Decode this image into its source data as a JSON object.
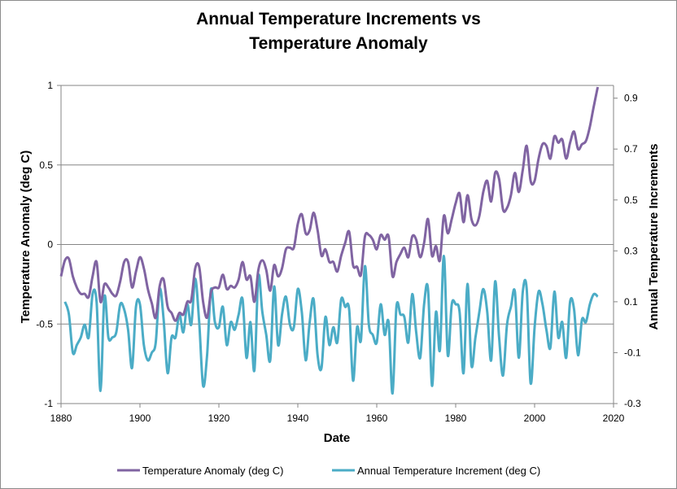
{
  "chart_data": {
    "type": "line",
    "title_line1": "Annual Temperature Increments vs",
    "title_line2": "Temperature Anomaly",
    "xlabel": "Date",
    "ylabel_left": "Temperature Anomaly (deg C)",
    "ylabel_right": "Annual Temperature Increments",
    "xlim": [
      1880,
      2020
    ],
    "xticks": [
      1880,
      1900,
      1920,
      1940,
      1960,
      1980,
      2000,
      2020
    ],
    "ylim_left": [
      -1,
      1
    ],
    "yticks_left": [
      -1,
      -0.5,
      0,
      0.5,
      1
    ],
    "ylim_right": [
      -0.3,
      0.95
    ],
    "yticks_right": [
      -0.3,
      -0.1,
      0.1,
      0.3,
      0.5,
      0.7,
      0.9
    ],
    "gridlines": "horizontal",
    "legend_position": "bottom",
    "colors": {
      "anomaly": "#8064a2",
      "increment": "#4bacc6",
      "grid": "#868686",
      "axis": "#868686"
    },
    "series": [
      {
        "name": "Temperature Anomaly (deg C)",
        "axis": "left",
        "color": "#8064a2",
        "x": [
          1880,
          1881,
          1882,
          1883,
          1884,
          1885,
          1886,
          1887,
          1888,
          1889,
          1890,
          1891,
          1892,
          1893,
          1894,
          1895,
          1896,
          1897,
          1898,
          1899,
          1900,
          1901,
          1902,
          1903,
          1904,
          1905,
          1906,
          1907,
          1908,
          1909,
          1910,
          1911,
          1912,
          1913,
          1914,
          1915,
          1916,
          1917,
          1918,
          1919,
          1920,
          1921,
          1922,
          1923,
          1924,
          1925,
          1926,
          1927,
          1928,
          1929,
          1930,
          1931,
          1932,
          1933,
          1934,
          1935,
          1936,
          1937,
          1938,
          1939,
          1940,
          1941,
          1942,
          1943,
          1944,
          1945,
          1946,
          1947,
          1948,
          1949,
          1950,
          1951,
          1952,
          1953,
          1954,
          1955,
          1956,
          1957,
          1958,
          1959,
          1960,
          1961,
          1962,
          1963,
          1964,
          1965,
          1966,
          1967,
          1968,
          1969,
          1970,
          1971,
          1972,
          1973,
          1974,
          1975,
          1976,
          1977,
          1978,
          1979,
          1980,
          1981,
          1982,
          1983,
          1984,
          1985,
          1986,
          1987,
          1988,
          1989,
          1990,
          1991,
          1992,
          1993,
          1994,
          1995,
          1996,
          1997,
          1998,
          1999,
          2000,
          2001,
          2002,
          2003,
          2004,
          2005,
          2006,
          2007,
          2008,
          2009,
          2010,
          2011,
          2012,
          2013,
          2014,
          2015,
          2016
        ],
        "values": [
          -0.2,
          -0.1,
          -0.09,
          -0.2,
          -0.27,
          -0.31,
          -0.31,
          -0.33,
          -0.2,
          -0.11,
          -0.36,
          -0.25,
          -0.27,
          -0.31,
          -0.32,
          -0.23,
          -0.11,
          -0.11,
          -0.27,
          -0.17,
          -0.08,
          -0.15,
          -0.28,
          -0.37,
          -0.46,
          -0.26,
          -0.22,
          -0.39,
          -0.43,
          -0.48,
          -0.43,
          -0.44,
          -0.36,
          -0.35,
          -0.15,
          -0.14,
          -0.36,
          -0.46,
          -0.3,
          -0.27,
          -0.27,
          -0.19,
          -0.28,
          -0.26,
          -0.27,
          -0.22,
          -0.11,
          -0.22,
          -0.2,
          -0.36,
          -0.16,
          -0.1,
          -0.16,
          -0.29,
          -0.13,
          -0.2,
          -0.15,
          -0.03,
          -0.02,
          -0.02,
          0.13,
          0.19,
          0.07,
          0.09,
          0.2,
          0.09,
          -0.07,
          -0.03,
          -0.11,
          -0.11,
          -0.17,
          -0.07,
          0.01,
          0.08,
          -0.13,
          -0.14,
          -0.19,
          0.05,
          0.06,
          0.03,
          -0.03,
          0.06,
          0.03,
          0.05,
          -0.2,
          -0.11,
          -0.06,
          -0.02,
          -0.08,
          0.05,
          0.03,
          -0.08,
          0.01,
          0.16,
          -0.07,
          -0.01,
          -0.1,
          0.18,
          0.07,
          0.16,
          0.26,
          0.32,
          0.14,
          0.31,
          0.16,
          0.12,
          0.18,
          0.33,
          0.4,
          0.27,
          0.45,
          0.41,
          0.22,
          0.23,
          0.31,
          0.45,
          0.33,
          0.47,
          0.62,
          0.4,
          0.4,
          0.54,
          0.63,
          0.62,
          0.54,
          0.68,
          0.64,
          0.66,
          0.54,
          0.64,
          0.71,
          0.6,
          0.63,
          0.65,
          0.74,
          0.87,
          0.99
        ]
      },
      {
        "name": "Annual Temperature Increment (deg C)",
        "axis": "right",
        "color": "#4bacc6",
        "x": [
          1881,
          1882,
          1883,
          1884,
          1885,
          1886,
          1887,
          1888,
          1889,
          1890,
          1891,
          1892,
          1893,
          1894,
          1895,
          1896,
          1897,
          1898,
          1899,
          1900,
          1901,
          1902,
          1903,
          1904,
          1905,
          1906,
          1907,
          1908,
          1909,
          1910,
          1911,
          1912,
          1913,
          1914,
          1915,
          1916,
          1917,
          1918,
          1919,
          1920,
          1921,
          1922,
          1923,
          1924,
          1925,
          1926,
          1927,
          1928,
          1929,
          1930,
          1931,
          1932,
          1933,
          1934,
          1935,
          1936,
          1937,
          1938,
          1939,
          1940,
          1941,
          1942,
          1943,
          1944,
          1945,
          1946,
          1947,
          1948,
          1949,
          1950,
          1951,
          1952,
          1953,
          1954,
          1955,
          1956,
          1957,
          1958,
          1959,
          1960,
          1961,
          1962,
          1963,
          1964,
          1965,
          1966,
          1967,
          1968,
          1969,
          1970,
          1971,
          1972,
          1973,
          1974,
          1975,
          1976,
          1977,
          1978,
          1979,
          1980,
          1981,
          1982,
          1983,
          1984,
          1985,
          1986,
          1987,
          1988,
          1989,
          1990,
          1991,
          1992,
          1993,
          1994,
          1995,
          1996,
          1997,
          1998,
          1999,
          2000,
          2001,
          2002,
          2003,
          2004,
          2005,
          2006,
          2007,
          2008,
          2009,
          2010,
          2011,
          2012,
          2013,
          2014,
          2015,
          2016
        ],
        "values": [
          0.1,
          0.05,
          -0.1,
          -0.07,
          -0.04,
          0.01,
          -0.04,
          0.13,
          0.1,
          -0.25,
          0.12,
          -0.04,
          -0.04,
          -0.02,
          0.09,
          0.07,
          -0.01,
          -0.16,
          0.08,
          0.09,
          -0.07,
          -0.13,
          -0.1,
          -0.06,
          0.15,
          0.03,
          -0.18,
          -0.04,
          -0.04,
          0.05,
          -0.02,
          0.09,
          0.01,
          0.19,
          0.02,
          -0.23,
          -0.11,
          0.15,
          0.02,
          0.0,
          0.08,
          -0.07,
          0.02,
          -0.01,
          0.05,
          0.11,
          -0.12,
          0.02,
          -0.17,
          0.2,
          0.06,
          -0.03,
          -0.13,
          0.16,
          -0.07,
          0.05,
          0.12,
          0.01,
          0.0,
          0.15,
          0.06,
          -0.13,
          0.02,
          0.11,
          -0.11,
          -0.16,
          0.04,
          -0.07,
          0.0,
          -0.06,
          0.11,
          0.08,
          0.07,
          -0.21,
          0.0,
          -0.05,
          0.24,
          0.01,
          -0.03,
          -0.06,
          0.09,
          -0.03,
          0.02,
          -0.26,
          0.08,
          0.05,
          0.04,
          -0.06,
          0.13,
          -0.02,
          -0.12,
          0.09,
          0.15,
          -0.23,
          0.06,
          -0.09,
          0.28,
          -0.11,
          0.09,
          0.09,
          0.06,
          -0.18,
          0.17,
          -0.15,
          -0.04,
          0.06,
          0.15,
          0.06,
          -0.13,
          0.18,
          -0.04,
          -0.19,
          0.01,
          0.08,
          0.14,
          -0.12,
          0.14,
          0.15,
          -0.22,
          0.0,
          0.14,
          0.09,
          -0.01,
          -0.08,
          0.14,
          -0.04,
          0.02,
          -0.12,
          0.1,
          0.07,
          -0.11,
          0.03,
          0.02,
          0.09,
          0.13,
          0.12
        ]
      }
    ]
  }
}
